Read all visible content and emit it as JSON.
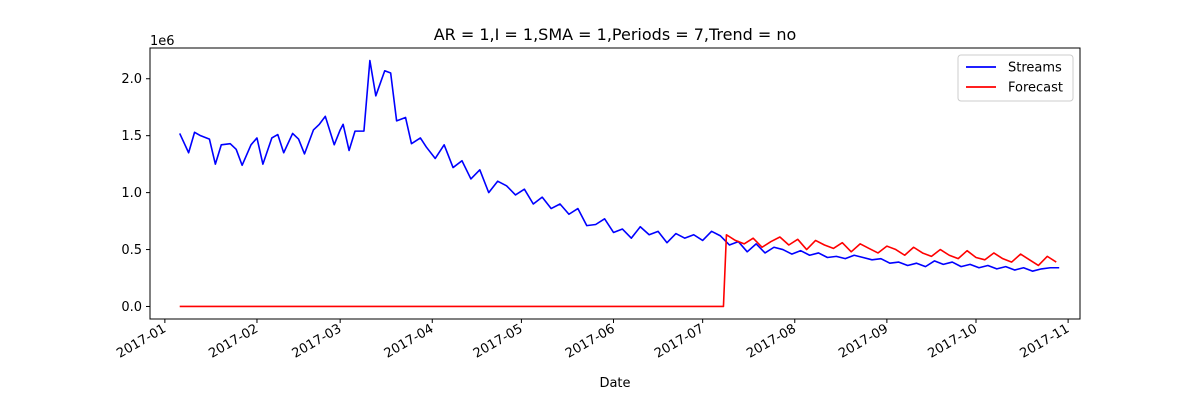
{
  "chart_data": {
    "type": "line",
    "title": "AR = 1,I = 1,SMA = 1,Periods = 7,Trend = no",
    "xlabel": "Date",
    "ylabel": "",
    "y_scale_label": "1e6",
    "x_range": [
      "2016-12-27",
      "2017-11-05"
    ],
    "ylim": [
      -0.11,
      2.27
    ],
    "y_ticks": [
      0.0,
      0.5,
      1.0,
      1.5,
      2.0
    ],
    "y_tick_labels": [
      "0.0",
      "0.5",
      "1.0",
      "1.5",
      "2.0"
    ],
    "x_ticks": [
      "2017-01-01",
      "2017-02-01",
      "2017-03-01",
      "2017-04-01",
      "2017-05-01",
      "2017-06-01",
      "2017-07-01",
      "2017-08-01",
      "2017-09-01",
      "2017-10-01",
      "2017-11-01"
    ],
    "x_tick_labels": [
      "2017-01",
      "2017-02",
      "2017-03",
      "2017-04",
      "2017-05",
      "2017-06",
      "2017-07",
      "2017-08",
      "2017-09",
      "2017-10",
      "2017-11"
    ],
    "grid": false,
    "legend_position": "top-right",
    "series": [
      {
        "name": "Streams",
        "color": "#0000ff",
        "x": [
          "2017-01-06",
          "2017-01-09",
          "2017-01-11",
          "2017-01-13",
          "2017-01-16",
          "2017-01-18",
          "2017-01-20",
          "2017-01-23",
          "2017-01-25",
          "2017-01-27",
          "2017-01-30",
          "2017-02-01",
          "2017-02-03",
          "2017-02-06",
          "2017-02-08",
          "2017-02-10",
          "2017-02-13",
          "2017-02-15",
          "2017-02-17",
          "2017-02-20",
          "2017-02-22",
          "2017-02-24",
          "2017-02-27",
          "2017-03-01",
          "2017-03-02",
          "2017-03-04",
          "2017-03-06",
          "2017-03-09",
          "2017-03-11",
          "2017-03-13",
          "2017-03-16",
          "2017-03-18",
          "2017-03-20",
          "2017-03-23",
          "2017-03-25",
          "2017-03-28",
          "2017-03-30",
          "2017-04-02",
          "2017-04-05",
          "2017-04-08",
          "2017-04-11",
          "2017-04-14",
          "2017-04-17",
          "2017-04-20",
          "2017-04-23",
          "2017-04-26",
          "2017-04-29",
          "2017-05-02",
          "2017-05-05",
          "2017-05-08",
          "2017-05-11",
          "2017-05-14",
          "2017-05-17",
          "2017-05-20",
          "2017-05-23",
          "2017-05-26",
          "2017-05-29",
          "2017-06-01",
          "2017-06-04",
          "2017-06-07",
          "2017-06-10",
          "2017-06-13",
          "2017-06-16",
          "2017-06-19",
          "2017-06-22",
          "2017-06-25",
          "2017-06-28",
          "2017-07-01",
          "2017-07-04",
          "2017-07-07",
          "2017-07-10",
          "2017-07-13",
          "2017-07-16",
          "2017-07-19",
          "2017-07-22",
          "2017-07-25",
          "2017-07-28",
          "2017-07-31",
          "2017-08-03",
          "2017-08-06",
          "2017-08-09",
          "2017-08-12",
          "2017-08-15",
          "2017-08-18",
          "2017-08-21",
          "2017-08-24",
          "2017-08-27",
          "2017-08-30",
          "2017-09-02",
          "2017-09-05",
          "2017-09-08",
          "2017-09-11",
          "2017-09-14",
          "2017-09-17",
          "2017-09-20",
          "2017-09-23",
          "2017-09-26",
          "2017-09-29",
          "2017-10-02",
          "2017-10-05",
          "2017-10-08",
          "2017-10-11",
          "2017-10-14",
          "2017-10-17",
          "2017-10-20",
          "2017-10-23",
          "2017-10-26",
          "2017-10-29"
        ],
        "values": [
          1.52,
          1.35,
          1.53,
          1.5,
          1.47,
          1.25,
          1.42,
          1.43,
          1.38,
          1.24,
          1.42,
          1.48,
          1.25,
          1.48,
          1.51,
          1.35,
          1.52,
          1.47,
          1.34,
          1.55,
          1.6,
          1.67,
          1.42,
          1.55,
          1.6,
          1.37,
          1.54,
          1.54,
          2.16,
          1.85,
          2.07,
          2.05,
          1.63,
          1.66,
          1.43,
          1.48,
          1.4,
          1.3,
          1.42,
          1.22,
          1.28,
          1.12,
          1.2,
          1.0,
          1.1,
          1.06,
          0.98,
          1.03,
          0.9,
          0.96,
          0.86,
          0.9,
          0.81,
          0.86,
          0.71,
          0.72,
          0.77,
          0.65,
          0.68,
          0.6,
          0.7,
          0.63,
          0.66,
          0.56,
          0.64,
          0.6,
          0.63,
          0.58,
          0.66,
          0.62,
          0.54,
          0.57,
          0.48,
          0.55,
          0.47,
          0.52,
          0.5,
          0.46,
          0.49,
          0.45,
          0.47,
          0.43,
          0.44,
          0.42,
          0.45,
          0.43,
          0.41,
          0.42,
          0.38,
          0.39,
          0.36,
          0.38,
          0.35,
          0.4,
          0.37,
          0.39,
          0.35,
          0.37,
          0.34,
          0.36,
          0.33,
          0.35,
          0.32,
          0.34,
          0.31,
          0.33,
          0.34,
          0.34
        ]
      },
      {
        "name": "Forecast",
        "color": "#ff0000",
        "x": [
          "2017-01-06",
          "2017-07-08",
          "2017-07-09",
          "2017-07-12",
          "2017-07-15",
          "2017-07-18",
          "2017-07-21",
          "2017-07-24",
          "2017-07-27",
          "2017-07-30",
          "2017-08-02",
          "2017-08-05",
          "2017-08-08",
          "2017-08-11",
          "2017-08-14",
          "2017-08-17",
          "2017-08-20",
          "2017-08-23",
          "2017-08-26",
          "2017-08-29",
          "2017-09-01",
          "2017-09-04",
          "2017-09-07",
          "2017-09-10",
          "2017-09-13",
          "2017-09-16",
          "2017-09-19",
          "2017-09-22",
          "2017-09-25",
          "2017-09-28",
          "2017-10-01",
          "2017-10-04",
          "2017-10-07",
          "2017-10-10",
          "2017-10-13",
          "2017-10-16",
          "2017-10-19",
          "2017-10-22",
          "2017-10-25",
          "2017-10-28"
        ],
        "values": [
          0.0,
          0.0,
          0.63,
          0.58,
          0.55,
          0.6,
          0.52,
          0.57,
          0.61,
          0.54,
          0.59,
          0.5,
          0.58,
          0.54,
          0.51,
          0.56,
          0.48,
          0.55,
          0.51,
          0.47,
          0.53,
          0.5,
          0.45,
          0.52,
          0.47,
          0.44,
          0.5,
          0.45,
          0.42,
          0.49,
          0.43,
          0.41,
          0.47,
          0.42,
          0.39,
          0.46,
          0.41,
          0.36,
          0.44,
          0.39
        ]
      }
    ]
  }
}
